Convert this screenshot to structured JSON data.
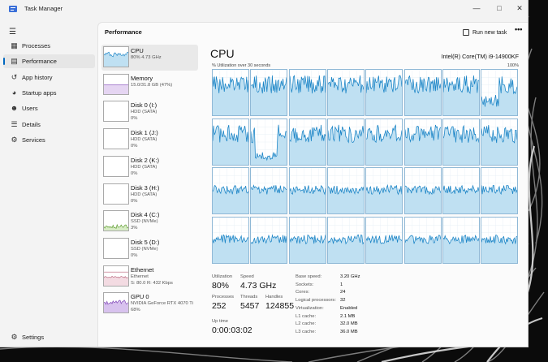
{
  "window": {
    "title": "Task Manager"
  },
  "nav": {
    "items": [
      {
        "id": "processes",
        "label": "Processes",
        "icon": "grid-icon"
      },
      {
        "id": "performance",
        "label": "Performance",
        "icon": "chart-icon",
        "active": true
      },
      {
        "id": "app-history",
        "label": "App history",
        "icon": "history-icon"
      },
      {
        "id": "startup",
        "label": "Startup apps",
        "icon": "speedometer-icon"
      },
      {
        "id": "users",
        "label": "Users",
        "icon": "users-icon"
      },
      {
        "id": "details",
        "label": "Details",
        "icon": "list-icon"
      },
      {
        "id": "services",
        "label": "Services",
        "icon": "puzzle-icon"
      }
    ],
    "settings_label": "Settings"
  },
  "header": {
    "title": "Performance",
    "run_task_label": "Run new task",
    "more_label": "•••"
  },
  "devices": [
    {
      "name": "CPU",
      "sub": [
        "80%  4.73 GHz"
      ],
      "graph": "cpu",
      "active": true
    },
    {
      "name": "Memory",
      "sub": [
        "15.0/31.8 GB (47%)"
      ],
      "graph": "memory"
    },
    {
      "name": "Disk 0 (I:)",
      "sub": [
        "HDD (SATA)",
        "0%"
      ],
      "graph": "none"
    },
    {
      "name": "Disk 1 (J:)",
      "sub": [
        "HDD (SATA)",
        "0%"
      ],
      "graph": "none"
    },
    {
      "name": "Disk 2 (K:)",
      "sub": [
        "HDD (SATA)",
        "0%"
      ],
      "graph": "none"
    },
    {
      "name": "Disk 3 (H:)",
      "sub": [
        "HDD (SATA)",
        "0%"
      ],
      "graph": "none"
    },
    {
      "name": "Disk 4 (C:)",
      "sub": [
        "SSD (NVMe)",
        "3%"
      ],
      "graph": "disk"
    },
    {
      "name": "Disk 5 (D:)",
      "sub": [
        "SSD (NVMe)",
        "0%"
      ],
      "graph": "none"
    },
    {
      "name": "Ethernet",
      "sub": [
        "Ethernet",
        "S: 80.0  R: 432 Kbps"
      ],
      "graph": "ethernet"
    },
    {
      "name": "GPU 0",
      "sub": [
        "NVIDIA GeForce RTX 4070 Ti",
        "68%"
      ],
      "graph": "gpu"
    }
  ],
  "cpu": {
    "title": "CPU",
    "model": "Intel(R) Core(TM) i9-14900KF",
    "util_caption": "% Utilization over 30 seconds",
    "max_caption": "100%",
    "colors": {
      "line": "#1a84c6",
      "fill": "#bfe0f2",
      "border": "#8fb8d6"
    }
  },
  "stats": {
    "utilization_label": "Utilization",
    "utilization": "80%",
    "speed_label": "Speed",
    "speed": "4.73 GHz",
    "processes_label": "Processes",
    "processes": "252",
    "threads_label": "Threads",
    "threads": "5457",
    "handles_label": "Handles",
    "handles": "124855",
    "uptime_label": "Up time",
    "uptime": "0:00:03:02"
  },
  "specs": [
    {
      "label": "Base speed:",
      "value": "3.20 GHz"
    },
    {
      "label": "Sockets:",
      "value": "1"
    },
    {
      "label": "Cores:",
      "value": "24"
    },
    {
      "label": "Logical processors:",
      "value": "32"
    },
    {
      "label": "Virtualization:",
      "value": "Enabled"
    },
    {
      "label": "L1 cache:",
      "value": "2.1 MB"
    },
    {
      "label": "L2 cache:",
      "value": "32.0 MB"
    },
    {
      "label": "L3 cache:",
      "value": "36.0 MB"
    }
  ]
}
